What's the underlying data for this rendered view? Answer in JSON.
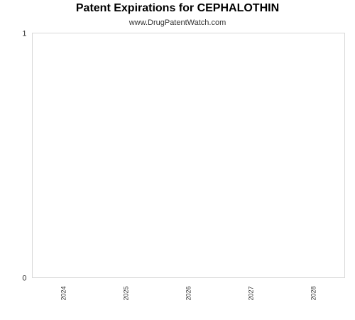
{
  "chart_data": {
    "type": "bar",
    "title": "Patent Expirations for CEPHALOTHIN",
    "subtitle": "www.DrugPatentWatch.com",
    "categories": [
      "2024",
      "2025",
      "2026",
      "2027",
      "2028"
    ],
    "values": [
      0,
      0,
      0,
      0,
      0
    ],
    "xlabel": "",
    "ylabel": "",
    "ylim": [
      0,
      1
    ],
    "yticks": [
      "0",
      "1"
    ],
    "grid": false,
    "colors": {
      "axis": "#d9d9d9",
      "text": "#333333",
      "title": "#000000",
      "bar": "#3a6ea5"
    }
  }
}
